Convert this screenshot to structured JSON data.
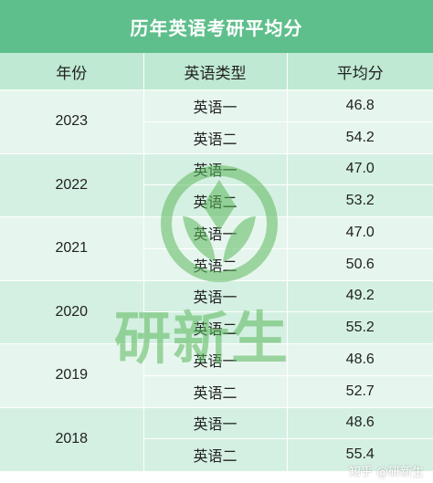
{
  "title": "历年英语考研平均分",
  "headers": {
    "year": "年份",
    "type": "英语类型",
    "score": "平均分"
  },
  "rows": [
    {
      "year": "2023",
      "items": [
        {
          "type": "英语一",
          "score": "46.8"
        },
        {
          "type": "英语二",
          "score": "54.2"
        }
      ]
    },
    {
      "year": "2022",
      "items": [
        {
          "type": "英语一",
          "score": "47.0"
        },
        {
          "type": "英语二",
          "score": "53.2"
        }
      ]
    },
    {
      "year": "2021",
      "items": [
        {
          "type": "英语一",
          "score": "47.0"
        },
        {
          "type": "英语二",
          "score": "50.6"
        }
      ]
    },
    {
      "year": "2020",
      "items": [
        {
          "type": "英语一",
          "score": "49.2"
        },
        {
          "type": "英语二",
          "score": "55.2"
        }
      ]
    },
    {
      "year": "2019",
      "items": [
        {
          "type": "英语一",
          "score": "48.6"
        },
        {
          "type": "英语二",
          "score": "52.7"
        }
      ]
    },
    {
      "year": "2018",
      "items": [
        {
          "type": "英语一",
          "score": "48.6"
        },
        {
          "type": "英语二",
          "score": "55.4"
        }
      ]
    }
  ],
  "watermark": {
    "text": "研新生",
    "logo": "leaf-circle-logo",
    "color": "#5cb85c"
  },
  "credit": "知乎 @研新生",
  "colors": {
    "title_bg": "#5fbf8c",
    "header_bg": "#bfe9d2",
    "row_light": "#e6f6ee",
    "row_dark": "#d4f0e2"
  }
}
